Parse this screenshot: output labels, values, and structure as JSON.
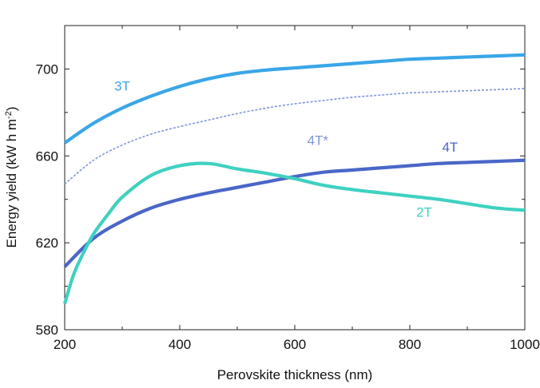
{
  "chart_data": {
    "type": "line",
    "xlabel": "Perovskite thickness (nm)",
    "ylabel": {
      "prefix": "Energy yield (kW h m",
      "sup": "-2",
      "suffix": ")"
    },
    "xlim": [
      200,
      1000
    ],
    "ylim": [
      580,
      720
    ],
    "xticks": [
      200,
      400,
      600,
      800,
      1000
    ],
    "yticks": [
      580,
      620,
      660,
      700
    ],
    "grid": false,
    "colors": {
      "3T": "#3aa6e8",
      "4T*": "#7f96d9",
      "4T": "#4a66c8",
      "2T": "#3fd1c0"
    },
    "series": [
      {
        "name": "3T",
        "style": "solid",
        "label_at": [
          300,
          690
        ],
        "x": [
          200,
          250,
          300,
          350,
          400,
          450,
          500,
          550,
          600,
          650,
          700,
          750,
          800,
          850,
          900,
          950,
          1000
        ],
        "y": [
          666,
          675,
          682,
          687.5,
          692,
          695.5,
          698,
          699.5,
          700.5,
          701.5,
          702.5,
          703.5,
          704.5,
          705,
          705.5,
          706,
          706.5
        ]
      },
      {
        "name": "4T*",
        "style": "dashed",
        "label_at": [
          640,
          665
        ],
        "x": [
          200,
          250,
          300,
          350,
          400,
          450,
          500,
          550,
          600,
          650,
          700,
          750,
          800,
          850,
          900,
          950,
          1000
        ],
        "y": [
          647,
          658,
          665,
          670,
          673.5,
          676.5,
          679.5,
          682,
          684,
          685.5,
          687,
          688,
          689,
          689.5,
          690,
          690.5,
          691
        ]
      },
      {
        "name": "4T",
        "style": "solid",
        "label_at": [
          870,
          662
        ],
        "x": [
          200,
          250,
          300,
          350,
          400,
          450,
          500,
          550,
          600,
          650,
          700,
          750,
          800,
          850,
          900,
          950,
          1000
        ],
        "y": [
          609,
          622,
          630,
          636,
          640,
          643,
          645.5,
          648,
          650.5,
          652.5,
          653.5,
          654.5,
          655.5,
          656.5,
          657,
          657.5,
          658
        ]
      },
      {
        "name": "2T",
        "style": "solid",
        "label_at": [
          825,
          632
        ],
        "x": [
          200,
          215,
          230,
          250,
          275,
          300,
          350,
          400,
          450,
          500,
          550,
          600,
          650,
          700,
          750,
          800,
          850,
          900,
          950,
          1000
        ],
        "y": [
          592,
          605,
          614,
          624,
          633,
          641,
          651,
          655.5,
          656.5,
          654,
          652,
          649.5,
          646.5,
          644.5,
          643,
          641.5,
          640,
          638,
          636,
          635
        ]
      }
    ]
  }
}
